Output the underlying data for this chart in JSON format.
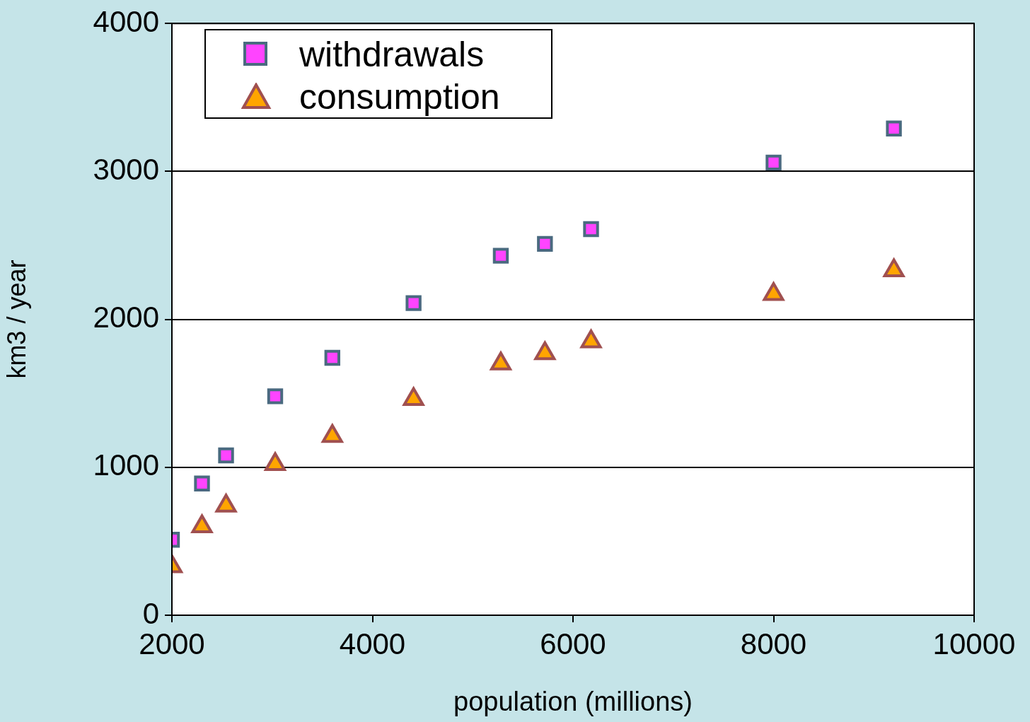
{
  "chart_data": {
    "type": "scatter",
    "xlabel": "population (millions)",
    "ylabel": "km3 / year",
    "xlim": [
      2000,
      10000
    ],
    "xticks": [
      2000,
      4000,
      6000,
      8000,
      10000
    ],
    "ylim": [
      0,
      4000
    ],
    "yticks": [
      0,
      1000,
      2000,
      3000,
      4000
    ],
    "grid": "y",
    "legend": "top left",
    "x": [
      2000,
      2300,
      2540,
      3030,
      3600,
      4410,
      5280,
      5720,
      6180,
      8000,
      9200
    ],
    "series": [
      {
        "name": "withdrawals",
        "color": "#ff44ff",
        "marker": "square",
        "values": [
          510,
          890,
          1080,
          1480,
          1740,
          2110,
          2430,
          2510,
          2610,
          3060,
          3290
        ]
      },
      {
        "name": "consumption",
        "color": "#ffa500",
        "marker": "triangle",
        "values": [
          330,
          600,
          740,
          1020,
          1210,
          1460,
          1700,
          1770,
          1850,
          2170,
          2330
        ]
      }
    ]
  }
}
